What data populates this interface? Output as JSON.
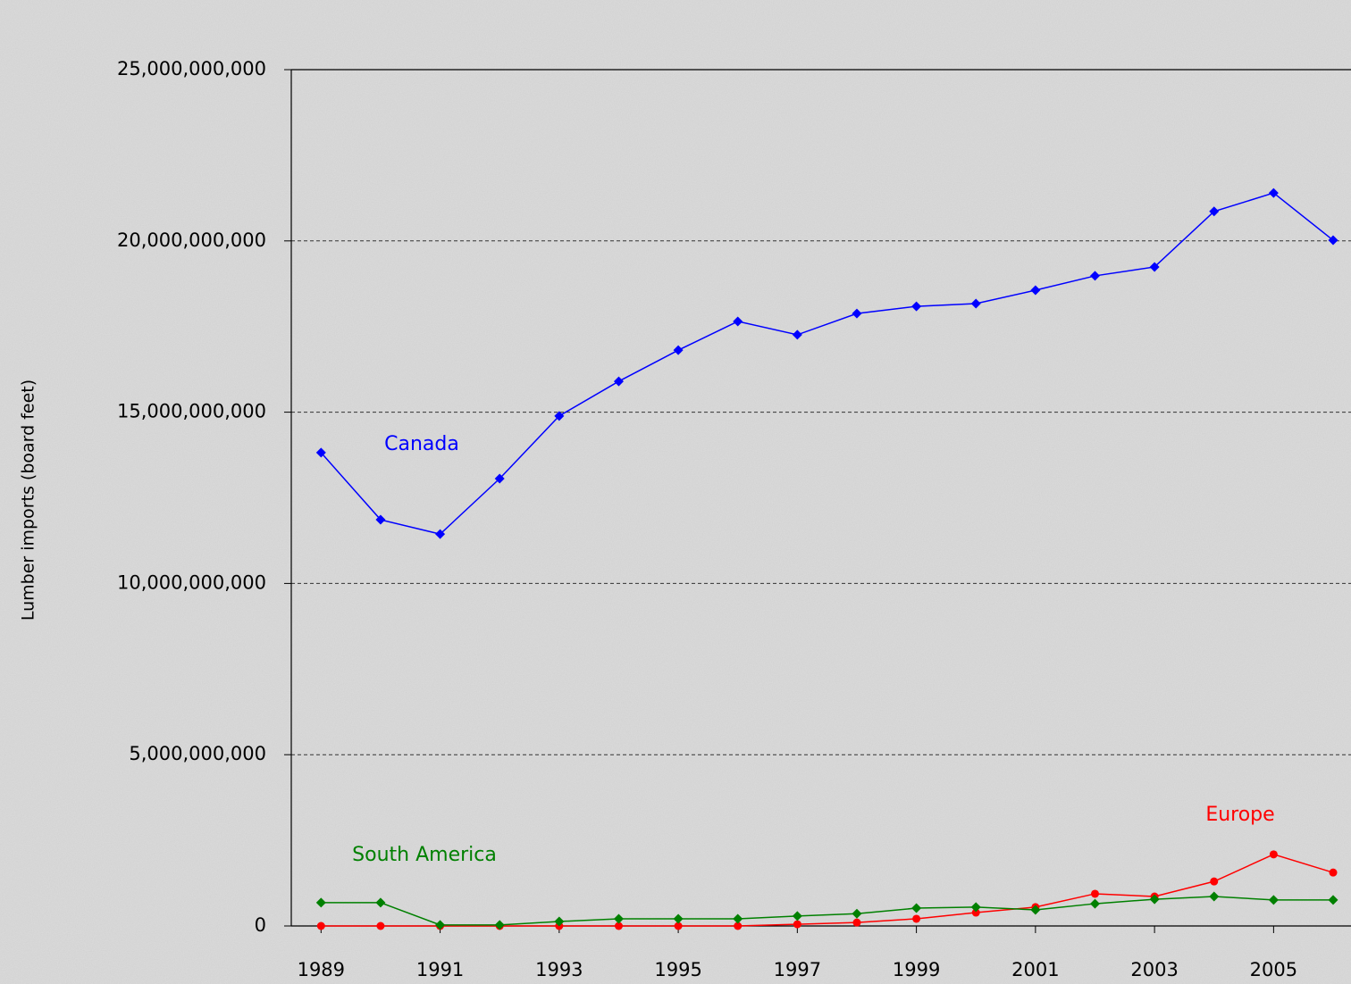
{
  "chart_data": {
    "type": "line",
    "y_label": "Lumber imports (board feet)",
    "x": [
      1989,
      1990,
      1991,
      1992,
      1993,
      1994,
      1995,
      1996,
      1997,
      1998,
      1999,
      2000,
      2001,
      2002,
      2003,
      2004,
      2005,
      2006
    ],
    "series": [
      {
        "name": "Canada",
        "color": "#0000ff",
        "marker": "diamond",
        "values": [
          13820000000,
          11860000000,
          11440000000,
          13060000000,
          14890000000,
          15900000000,
          16810000000,
          17650000000,
          17260000000,
          17880000000,
          18090000000,
          18170000000,
          18560000000,
          18980000000,
          19240000000,
          20860000000,
          21400000000,
          20020000000
        ]
      },
      {
        "name": "Europe",
        "color": "#ff0000",
        "marker": "circle",
        "values": [
          0,
          0,
          0,
          0,
          0,
          0,
          0,
          0,
          50000000,
          100000000,
          210000000,
          390000000,
          550000000,
          940000000,
          860000000,
          1300000000,
          2090000000,
          1560000000
        ]
      },
      {
        "name": "South America",
        "color": "#008000",
        "marker": "diamond",
        "values": [
          680000000,
          680000000,
          30000000,
          30000000,
          130000000,
          210000000,
          210000000,
          210000000,
          290000000,
          360000000,
          520000000,
          550000000,
          470000000,
          650000000,
          780000000,
          860000000,
          760000000,
          760000000
        ]
      }
    ],
    "xlim": [
      1988.5,
      2006.3
    ],
    "xticks": [
      1989,
      1991,
      1993,
      1995,
      1997,
      1999,
      2001,
      2003,
      2005
    ],
    "ylim": [
      0,
      25000000000
    ],
    "yticks": [
      0,
      {
        "value": 5000000000,
        "label": "5,000,000,000"
      },
      {
        "value": 10000000000,
        "label": "10,000,000,000"
      },
      {
        "value": 15000000000,
        "label": "15,000,000,000"
      },
      {
        "value": 20000000000,
        "label": "20,000,000,000"
      },
      {
        "value": 25000000000,
        "label": "25,000,000,000"
      }
    ],
    "grid": true
  }
}
